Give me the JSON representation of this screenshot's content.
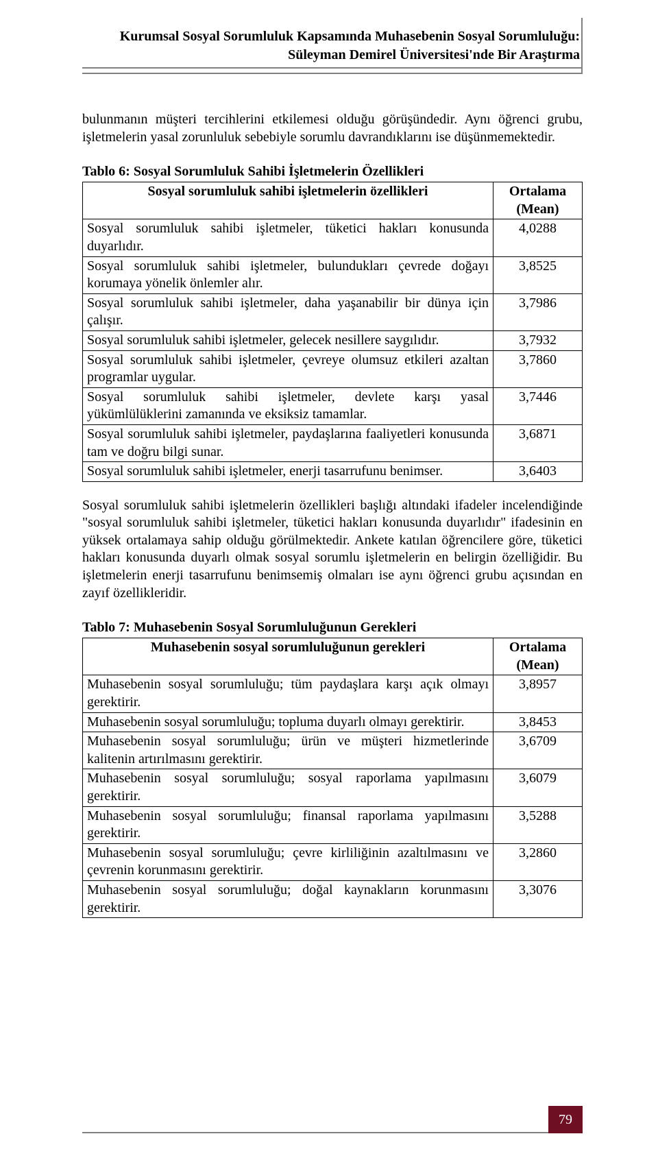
{
  "header": {
    "line1": "Kurumsal Sosyal Sorumluluk Kapsamında Muhasebenin Sosyal Sorumluluğu:",
    "line2": "Süleyman Demirel Üniversitesi'nde Bir Araştırma"
  },
  "intro_para": "bulunmanın müşteri tercihlerini etkilemesi olduğu görüşündedir. Aynı öğrenci grubu, işletmelerin yasal zorunluluk sebebiyle sorumlu davrandıklarını ise düşünmemektedir.",
  "table6": {
    "caption": "Tablo 6: Sosyal Sorumluluk Sahibi İşletmelerin Özellikleri",
    "head_label": "Sosyal sorumluluk sahibi işletmelerin özellikleri",
    "head_value_l1": "Ortalama",
    "head_value_l2": "(Mean)",
    "rows": [
      {
        "label": "Sosyal sorumluluk sahibi işletmeler, tüketici hakları konusunda duyarlıdır.",
        "value": "4,0288"
      },
      {
        "label": "Sosyal sorumluluk sahibi işletmeler, bulundukları çevrede doğayı korumaya yönelik önlemler alır.",
        "value": "3,8525"
      },
      {
        "label": "Sosyal sorumluluk sahibi işletmeler, daha yaşanabilir bir dünya için çalışır.",
        "value": "3,7986"
      },
      {
        "label": "Sosyal sorumluluk sahibi işletmeler, gelecek nesillere saygılıdır.",
        "value": "3,7932"
      },
      {
        "label": "Sosyal sorumluluk sahibi işletmeler, çevreye olumsuz etkileri azaltan programlar uygular.",
        "value": "3,7860"
      },
      {
        "label": "Sosyal sorumluluk sahibi işletmeler, devlete karşı yasal yükümlülüklerini zamanında ve eksiksiz tamamlar.",
        "value": "3,7446"
      },
      {
        "label": "Sosyal sorumluluk sahibi işletmeler, paydaşlarına faaliyetleri konusunda tam ve doğru bilgi sunar.",
        "value": "3,6871"
      },
      {
        "label": "Sosyal sorumluluk sahibi işletmeler, enerji tasarrufunu benimser.",
        "value": "3,6403"
      }
    ]
  },
  "mid_para": "Sosyal sorumluluk sahibi işletmelerin özellikleri başlığı altındaki ifadeler incelendiğinde \"sosyal sorumluluk sahibi işletmeler, tüketici hakları konusunda duyarlıdır\" ifadesinin en yüksek ortalamaya sahip olduğu görülmektedir. Ankete katılan öğrencilere göre, tüketici hakları konusunda duyarlı olmak sosyal sorumlu işletmelerin en belirgin özelliğidir. Bu işletmelerin enerji tasarrufunu benimsemiş olmaları ise aynı öğrenci grubu açısından en zayıf özellikleridir.",
  "table7": {
    "caption": "Tablo 7: Muhasebenin Sosyal Sorumluluğunun Gerekleri",
    "head_label": "Muhasebenin sosyal sorumluluğunun gerekleri",
    "head_value_l1": "Ortalama",
    "head_value_l2": "(Mean)",
    "rows": [
      {
        "label": "Muhasebenin sosyal sorumluluğu; tüm paydaşlara karşı açık olmayı gerektirir.",
        "value": "3,8957"
      },
      {
        "label": "Muhasebenin sosyal sorumluluğu; topluma duyarlı olmayı gerektirir.",
        "value": "3,8453"
      },
      {
        "label": "Muhasebenin sosyal sorumluluğu; ürün ve müşteri hizmetlerinde kalitenin artırılmasını gerektirir.",
        "value": "3,6709"
      },
      {
        "label": "Muhasebenin sosyal sorumluluğu; sosyal raporlama yapılmasını gerektirir.",
        "value": "3,6079"
      },
      {
        "label": "Muhasebenin sosyal sorumluluğu; finansal raporlama yapılmasını gerektirir.",
        "value": "3,5288"
      },
      {
        "label": "Muhasebenin sosyal sorumluluğu; çevre kirliliğinin azaltılmasını ve çevrenin korunmasını gerektirir.",
        "value": "3,2860"
      },
      {
        "label": "Muhasebenin sosyal sorumluluğu; doğal kaynakların korunmasını gerektirir.",
        "value": "3,3076"
      }
    ]
  },
  "page_number": "79",
  "colors": {
    "badge_bg": "#6e0f24",
    "badge_fg": "#ffffff",
    "rule": "#808080",
    "text": "#000000",
    "bg": "#ffffff"
  }
}
